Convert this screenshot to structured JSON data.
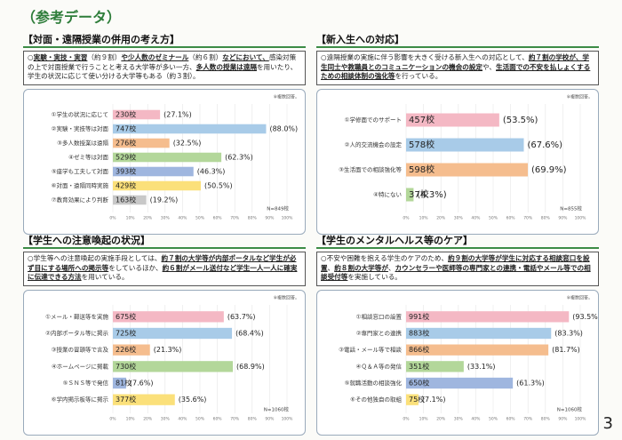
{
  "title": "（参考データ）",
  "page_number": "3",
  "chart_data": [
    {
      "type": "bar",
      "title": "【対面・遠隔授業の併用の考え方】",
      "description": [
        {
          "text": "○",
          "strong": false
        },
        {
          "text": "実験・実技・実習",
          "strong": true
        },
        {
          "text": "（約９割）",
          "strong": false
        },
        {
          "text": "や少人数のゼミナール",
          "strong": true
        },
        {
          "text": "（約６割）",
          "strong": false
        },
        {
          "text": "などにおいて、",
          "strong": true
        },
        {
          "text": "感染対策の上で対面授業で行うことと考える大学等が多い一方、",
          "strong": false
        },
        {
          "text": "多人数の授業は遠隔",
          "strong": true
        },
        {
          "text": "を用いたり、学生の状況に応じて使い分ける大学等もある（約３割）。",
          "strong": false
        }
      ],
      "note": "※複数回答。",
      "categories": [
        "①学生の状況に応じて",
        "②実験・実技等は対面",
        "③多人数授業は遠隔",
        "④ゼミ等は対面",
        "⑤座学も工夫して対面",
        "⑥対面・遠隔同時実施",
        "⑦教育効果により判断"
      ],
      "count_labels": [
        "230校",
        "747校",
        "276校",
        "529校",
        "393校",
        "429校",
        "163校"
      ],
      "values": [
        27.1,
        88.0,
        32.5,
        62.3,
        46.3,
        50.5,
        19.2
      ],
      "value_labels": [
        "(27.1%)",
        "(88.0%)",
        "(32.5%)",
        "(62.3%)",
        "(46.3%)",
        "(50.5%)",
        "(19.2%)"
      ],
      "colors": [
        "#f4b8c4",
        "#a8cbe8",
        "#f5bd8e",
        "#b3d79a",
        "#9fb6df",
        "#fbe07a",
        "#c8c8c8"
      ],
      "n_label": "N=849校",
      "xlim": [
        0,
        100
      ],
      "xticks": [
        {
          "value": 0,
          "label": "0%"
        },
        {
          "value": 10,
          "label": "10%"
        },
        {
          "value": 20,
          "label": "20%"
        },
        {
          "value": 30,
          "label": "30%"
        },
        {
          "value": 40,
          "label": "40%"
        },
        {
          "value": 50,
          "label": "50%"
        },
        {
          "value": 60,
          "label": "60%"
        },
        {
          "value": 70,
          "label": "70%"
        },
        {
          "value": 80,
          "label": "80%"
        },
        {
          "value": 90,
          "label": "90%"
        },
        {
          "value": 100,
          "label": "100%"
        }
      ]
    },
    {
      "type": "bar",
      "title": "【新入生への対応】",
      "description": [
        {
          "text": "○遠隔授業の実施に伴う影響を大きく受ける新入生への対応として、",
          "strong": false
        },
        {
          "text": "約７割の学校が、学生同士や教職員とのコミュニケーションの機会の設定",
          "strong": true
        },
        {
          "text": "や、",
          "strong": false
        },
        {
          "text": "生活面での不安を払しょくするための相談体制の強化等",
          "strong": true
        },
        {
          "text": "を行っている。",
          "strong": false
        }
      ],
      "note": "※複数回答。",
      "categories": [
        "①学修面でのサポート",
        "②人的交流機会の設定",
        "③生活面での相談強化等",
        "④特にない"
      ],
      "count_labels": [
        "457校",
        "578校",
        "598校",
        "37校"
      ],
      "values": [
        53.5,
        67.6,
        69.9,
        4.3
      ],
      "value_labels": [
        "(53.5%)",
        "(67.6%)",
        "(69.9%)",
        "(4.3%)"
      ],
      "colors": [
        "#f4b8c4",
        "#a8cbe8",
        "#f5bd8e",
        "#b3d79a"
      ],
      "n_label": "N=855校",
      "xlim": [
        0,
        100
      ],
      "xticks": [
        {
          "value": 0,
          "label": "0%"
        },
        {
          "value": 10,
          "label": "10%"
        },
        {
          "value": 20,
          "label": "20%"
        },
        {
          "value": 30,
          "label": "30%"
        },
        {
          "value": 40,
          "label": "40%"
        },
        {
          "value": 50,
          "label": "50%"
        },
        {
          "value": 60,
          "label": "60%"
        },
        {
          "value": 70,
          "label": "70%"
        },
        {
          "value": 80,
          "label": "80%"
        },
        {
          "value": 90,
          "label": "90%"
        },
        {
          "value": 100,
          "label": "100%"
        }
      ]
    },
    {
      "type": "bar",
      "title": "【学生への注意喚起の状況】",
      "description": [
        {
          "text": "○学生等への注意喚起の実施手段としては、",
          "strong": false
        },
        {
          "text": "約７割の大学等が内部ポータルなど学生が必ず目にする場所への掲示等",
          "strong": true
        },
        {
          "text": "をしているほか、",
          "strong": false
        },
        {
          "text": "約６割がメール送付など学生一人一人に確実に伝達できる方法",
          "strong": true
        },
        {
          "text": "を用いている。",
          "strong": false
        }
      ],
      "note": "※複数回答。",
      "categories": [
        "①メール・郵送等を実施",
        "②内部ポータル等に掲示",
        "③授業の冒頭等で言及",
        "④ホームページに掲載",
        "⑤ＳＮＳ等で発信",
        "⑥学内掲示板等に掲示"
      ],
      "count_labels": [
        "675校",
        "725校",
        "226校",
        "730校",
        "81校",
        "377校"
      ],
      "values": [
        63.7,
        68.4,
        21.3,
        68.9,
        7.6,
        35.6
      ],
      "value_labels": [
        "(63.7%)",
        "(68.4%)",
        "(21.3%)",
        "(68.9%)",
        "(7.6%)",
        "(35.6%)"
      ],
      "colors": [
        "#f4b8c4",
        "#a8cbe8",
        "#f5bd8e",
        "#b3d79a",
        "#9fb6df",
        "#fbe07a"
      ],
      "n_label": "N=1060校",
      "xlim": [
        0,
        100
      ],
      "xticks": [
        {
          "value": 0,
          "label": "0%"
        },
        {
          "value": 10,
          "label": "10%"
        },
        {
          "value": 20,
          "label": "20%"
        },
        {
          "value": 30,
          "label": "30%"
        },
        {
          "value": 40,
          "label": "40%"
        },
        {
          "value": 50,
          "label": "50%"
        },
        {
          "value": 60,
          "label": "60%"
        },
        {
          "value": 70,
          "label": "70%"
        },
        {
          "value": 80,
          "label": "80%"
        },
        {
          "value": 90,
          "label": "90%"
        },
        {
          "value": 100,
          "label": "100%"
        }
      ]
    },
    {
      "type": "bar",
      "title": "【学生のメンタルヘルス等のケア】",
      "description": [
        {
          "text": "○不安や困難を抱える学生のケアのため、",
          "strong": false
        },
        {
          "text": "約９割の大学等が学生に対応する相談窓口を設置",
          "strong": true
        },
        {
          "text": "、",
          "strong": false
        },
        {
          "text": "約８割の大学等が",
          "strong": true
        },
        {
          "text": "、",
          "strong": false
        },
        {
          "text": "カウンセラーや医師等の専門家との連携・電話やメール等での相談受付等",
          "strong": true
        },
        {
          "text": "を実施している。",
          "strong": false
        }
      ],
      "note": "※複数回答。",
      "categories": [
        "①相談窓口の設置",
        "②専門家との連携",
        "③電話・メール等で相談",
        "④Ｑ＆Ａ等の発信",
        "⑤就職活動の相談強化",
        "⑥その他独自の取組"
      ],
      "count_labels": [
        "991校",
        "883校",
        "866校",
        "351校",
        "650校",
        "75校"
      ],
      "values": [
        93.5,
        83.3,
        81.7,
        33.1,
        61.3,
        7.1
      ],
      "value_labels": [
        "(93.5%)",
        "(83.3%)",
        "(81.7%)",
        "(33.1%)",
        "(61.3%)",
        "(7.1%)"
      ],
      "colors": [
        "#f4b8c4",
        "#a8cbe8",
        "#f5bd8e",
        "#b3d79a",
        "#9fb6df",
        "#fbe07a"
      ],
      "n_label": "N=1060校",
      "xlim": [
        0,
        100
      ],
      "xticks": [
        {
          "value": 0,
          "label": "0%"
        },
        {
          "value": 10,
          "label": "10%"
        },
        {
          "value": 20,
          "label": "20%"
        },
        {
          "value": 30,
          "label": "30%"
        },
        {
          "value": 40,
          "label": "40%"
        },
        {
          "value": 50,
          "label": "50%"
        },
        {
          "value": 60,
          "label": "60%"
        },
        {
          "value": 70,
          "label": "70%"
        },
        {
          "value": 80,
          "label": "80%"
        },
        {
          "value": 90,
          "label": "90%"
        },
        {
          "value": 100,
          "label": "100%"
        }
      ]
    }
  ]
}
